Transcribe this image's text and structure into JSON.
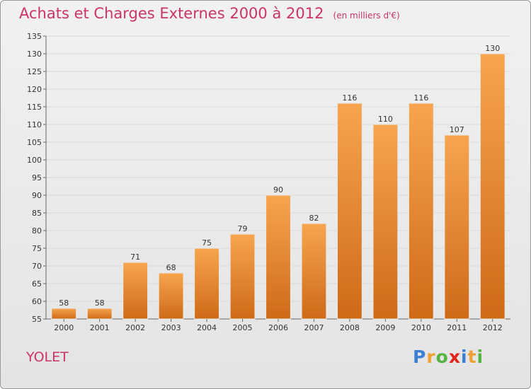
{
  "title": "Achats et Charges Externes 2000 à 2012",
  "subtitle": "(en milliers d'€)",
  "commune": "YOLET",
  "logo": {
    "text": "Proxiti",
    "letters": [
      {
        "char": "P",
        "color": "#3b7fd4"
      },
      {
        "char": "r",
        "color": "#f0a030"
      },
      {
        "char": "o",
        "color": "#56b33f"
      },
      {
        "char": "x",
        "color": "#e2231a"
      },
      {
        "char": "i",
        "color": "#3b7fd4"
      },
      {
        "char": "t",
        "color": "#f0a030"
      },
      {
        "char": "i",
        "color": "#56b33f"
      }
    ]
  },
  "colors": {
    "title": "#cc3366",
    "bar_light": "#f7a54e",
    "bar_dark": "#cf6a17",
    "grid": "#d9d9d9"
  },
  "chart_data": {
    "type": "bar",
    "title": "Achats et Charges Externes 2000 à 2012",
    "subtitle": "(en milliers d'€)",
    "categories": [
      "2000",
      "2001",
      "2002",
      "2003",
      "2004",
      "2005",
      "2006",
      "2007",
      "2008",
      "2009",
      "2010",
      "2011",
      "2012"
    ],
    "values": [
      58,
      58,
      71,
      68,
      75,
      79,
      90,
      82,
      116,
      110,
      116,
      107,
      130
    ],
    "ylim": [
      55,
      135
    ],
    "yticks": [
      55,
      60,
      65,
      70,
      75,
      80,
      85,
      90,
      95,
      100,
      105,
      110,
      115,
      120,
      125,
      130,
      135
    ],
    "grid": true,
    "data_labels": true
  }
}
